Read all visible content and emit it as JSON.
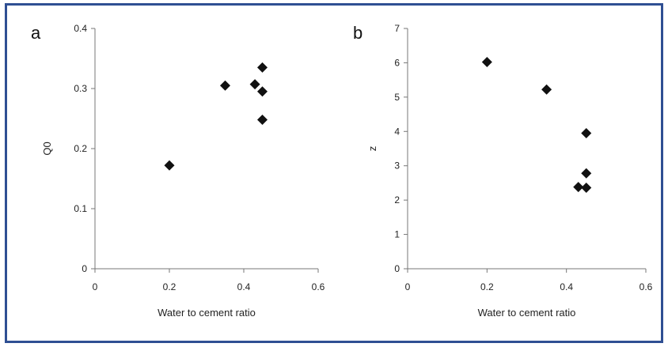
{
  "chart_data": [
    {
      "type": "scatter",
      "panel_label": "a",
      "xlabel": "Water to cement ratio",
      "ylabel": "Q0",
      "xlim": [
        0,
        0.6
      ],
      "ylim": [
        0,
        0.4
      ],
      "xticks": [
        "0",
        "0.2",
        "0.4",
        "0.6"
      ],
      "yticks": [
        "0",
        "0.1",
        "0.2",
        "0.3",
        "0.4"
      ],
      "grid": false,
      "marker": "diamond",
      "color": "#111111",
      "series": [
        {
          "x": [
            0.2,
            0.35,
            0.43,
            0.45,
            0.45,
            0.45
          ],
          "y": [
            0.172,
            0.305,
            0.307,
            0.335,
            0.295,
            0.248
          ]
        }
      ]
    },
    {
      "type": "scatter",
      "panel_label": "b",
      "xlabel": "Water to cement ratio",
      "ylabel": "z",
      "xlim": [
        0,
        0.6
      ],
      "ylim": [
        0,
        7
      ],
      "xticks": [
        "0",
        "0.2",
        "0.4",
        "0.6"
      ],
      "yticks": [
        "0",
        "1",
        "2",
        "3",
        "4",
        "5",
        "6",
        "7"
      ],
      "grid": false,
      "marker": "diamond",
      "color": "#111111",
      "series": [
        {
          "x": [
            0.2,
            0.35,
            0.45,
            0.45,
            0.43,
            0.45
          ],
          "y": [
            6.02,
            5.22,
            3.95,
            2.78,
            2.38,
            2.36
          ]
        }
      ]
    }
  ]
}
